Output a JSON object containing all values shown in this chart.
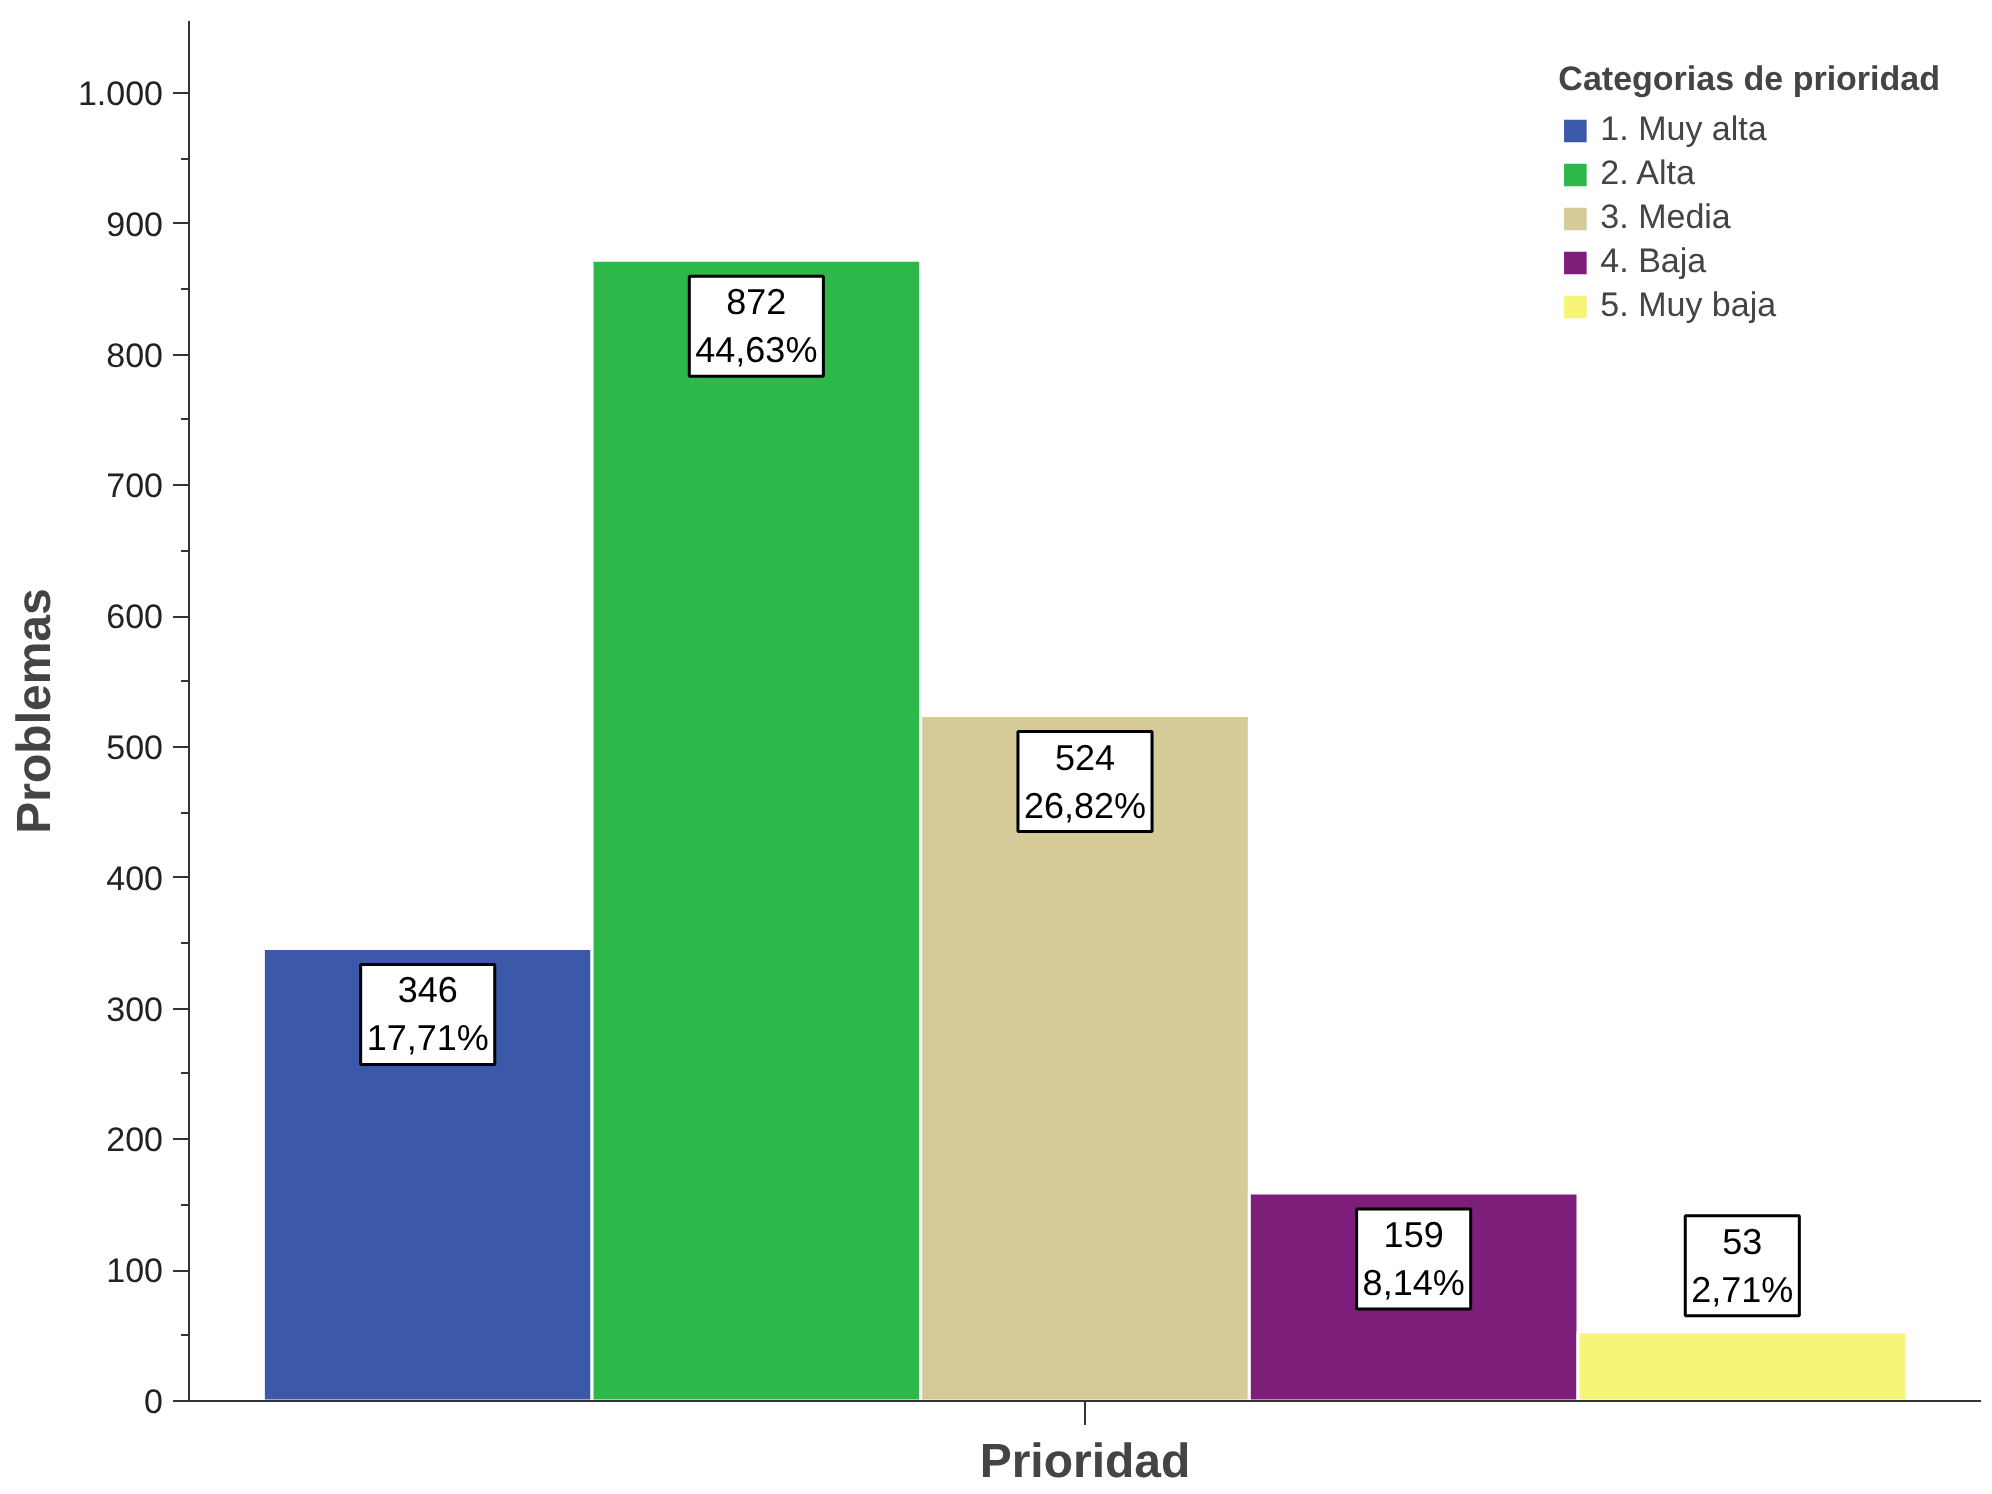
{
  "chart_data": {
    "type": "bar",
    "xlabel": "Prioridad",
    "ylabel": "Problemas",
    "legend_title": "Categorias de prioridad",
    "categories": [
      null
    ],
    "series": [
      {
        "name": "1. Muy alta",
        "color": "#3c58a8",
        "values": [
          346
        ],
        "value_labels": [
          "346\n17,71%"
        ]
      },
      {
        "name": "2. Alta",
        "color": "#2eb84a",
        "values": [
          872
        ],
        "value_labels": [
          "872\n44,63%"
        ]
      },
      {
        "name": "3. Media",
        "color": "#d4cb98",
        "values": [
          524
        ],
        "value_labels": [
          "524\n26,82%"
        ]
      },
      {
        "name": "4. Baja",
        "color": "#7d1f7a",
        "values": [
          159
        ],
        "value_labels": [
          "159\n8,14%"
        ]
      },
      {
        "name": "5. Muy baja",
        "color": "#f6f57a",
        "values": [
          53
        ],
        "value_labels": [
          "53\n2,71%"
        ]
      }
    ],
    "ylim": [
      0,
      1055
    ],
    "yticks": [
      0,
      100,
      200,
      300,
      400,
      500,
      600,
      700,
      800,
      900,
      {
        "value": 1000,
        "label": "1.000"
      }
    ],
    "legend": "top right",
    "grid": false
  }
}
